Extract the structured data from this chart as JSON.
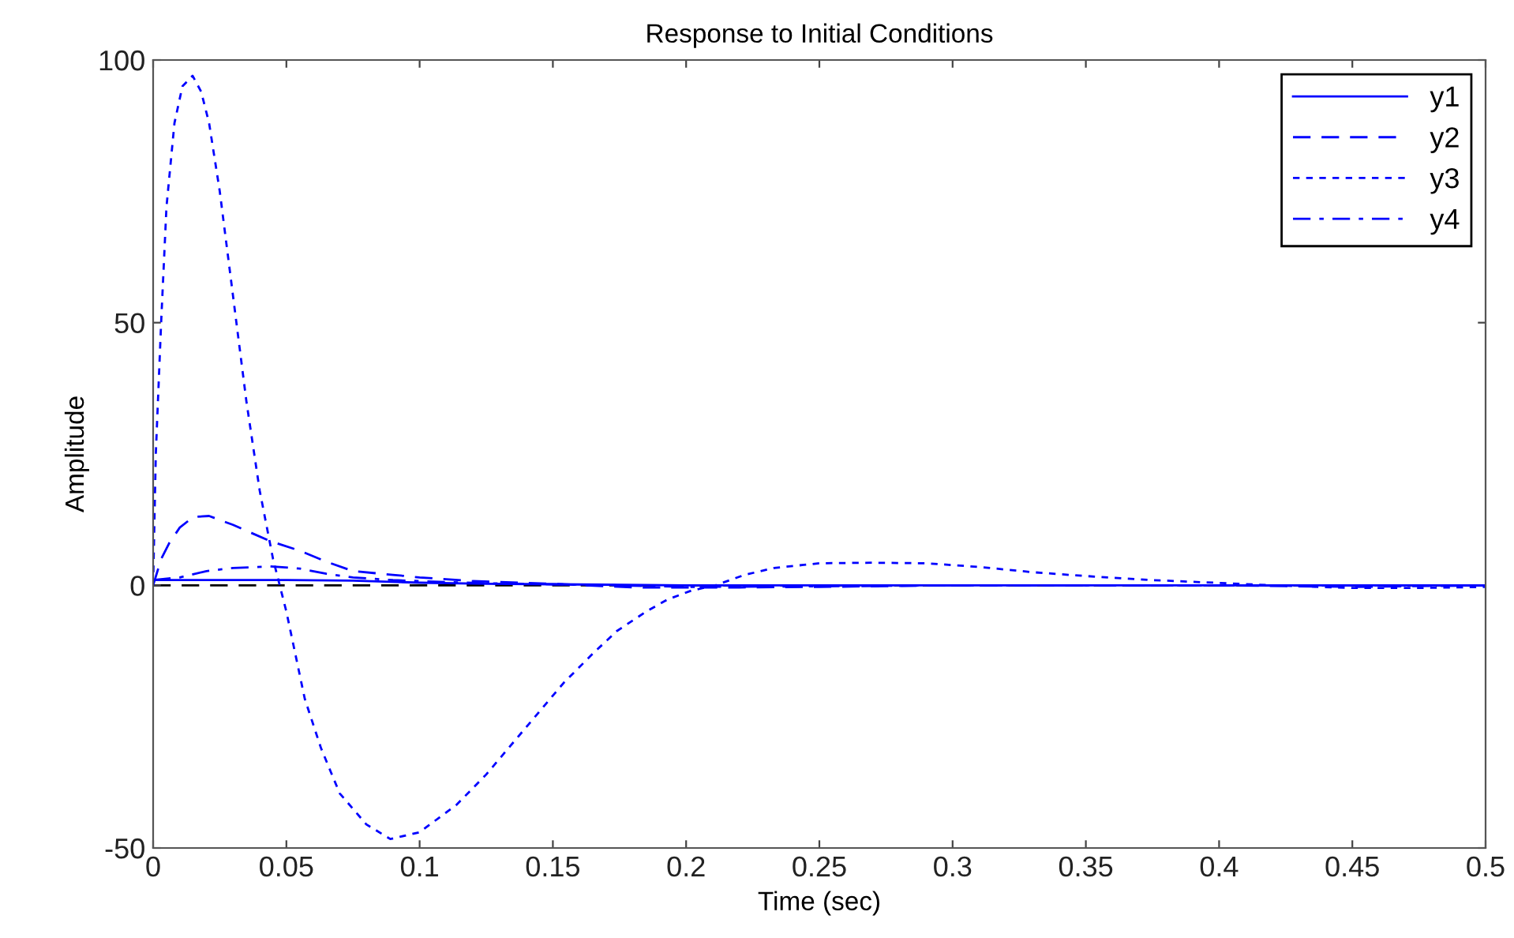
{
  "chart_data": {
    "type": "line",
    "title": "Response to Initial Conditions",
    "xlabel": "Time (sec)",
    "ylabel": "Amplitude",
    "xlim": [
      0,
      0.5
    ],
    "ylim": [
      -50,
      100
    ],
    "xticks": [
      0,
      0.05,
      0.1,
      0.15,
      0.2,
      0.25,
      0.3,
      0.35,
      0.4,
      0.45,
      0.5
    ],
    "yticks": [
      -50,
      0,
      50,
      100
    ],
    "grid": false,
    "legend": "top right",
    "marker": "none",
    "ref_lines": [
      {
        "axis": "y",
        "value": 0,
        "color": "#000000",
        "line_style": "dashed"
      }
    ],
    "series": [
      {
        "name": "y1",
        "color": "#0000ff",
        "line_style": "solid",
        "x": [
          0,
          0.02,
          0.05,
          0.075,
          0.1,
          0.125,
          0.15,
          0.2,
          0.3,
          0.4,
          0.5
        ],
        "values": [
          1,
          1,
          1,
          0.9,
          0.5,
          0.3,
          0.2,
          0,
          0,
          0,
          0
        ]
      },
      {
        "name": "y2",
        "color": "#0000ff",
        "line_style": "dashed",
        "x": [
          0,
          0.003,
          0.006,
          0.01,
          0.015,
          0.021,
          0.03,
          0.044,
          0.055,
          0.065,
          0.075,
          0.09,
          0.1,
          0.12,
          0.15,
          0.18,
          0.22,
          0.25,
          0.3,
          0.35,
          0.4,
          0.45,
          0.5
        ],
        "values": [
          0,
          5,
          8,
          11,
          13,
          13.2,
          11.5,
          8.4,
          6.6,
          4.5,
          2.7,
          2,
          1.5,
          0.8,
          0.3,
          -0.4,
          -0.4,
          -0.3,
          0,
          0,
          0,
          -0.3,
          0
        ]
      },
      {
        "name": "y3",
        "color": "#0000ff",
        "line_style": "dotted",
        "x": [
          0,
          0.001,
          0.003,
          0.005,
          0.008,
          0.011,
          0.0148,
          0.018,
          0.021,
          0.025,
          0.03,
          0.035,
          0.04,
          0.045,
          0.05,
          0.0569,
          0.063,
          0.07,
          0.08,
          0.089,
          0.1,
          0.114,
          0.125,
          0.134,
          0.145,
          0.154,
          0.165,
          0.174,
          0.185,
          0.193,
          0.202,
          0.211,
          0.222,
          0.233,
          0.25,
          0.27,
          0.29,
          0.31,
          0.33,
          0.349,
          0.375,
          0.398,
          0.42,
          0.45,
          0.475,
          0.5
        ],
        "values": [
          0,
          25,
          50,
          72,
          88,
          95,
          97,
          94,
          88,
          75,
          55,
          35,
          18,
          5,
          -5,
          -21.6,
          -31,
          -39.6,
          -45.5,
          -48.3,
          -47,
          -41.7,
          -36,
          -30.6,
          -24,
          -18.6,
          -13,
          -8.7,
          -5,
          -2.7,
          -1,
          0,
          2,
          3.3,
          4.2,
          4.3,
          4.2,
          3.5,
          2.5,
          1.8,
          1,
          0.5,
          0,
          -0.5,
          -0.5,
          -0.3
        ]
      },
      {
        "name": "y4",
        "color": "#0000ff",
        "line_style": "dashdot",
        "x": [
          0,
          0.01,
          0.02,
          0.03,
          0.044,
          0.055,
          0.065,
          0.075,
          0.09,
          0.1,
          0.125,
          0.15,
          0.175,
          0.2,
          0.25,
          0.3,
          0.4,
          0.5
        ],
        "values": [
          1,
          1.5,
          2.7,
          3.3,
          3.6,
          3.2,
          2.2,
          1.5,
          1,
          0.8,
          0.4,
          0.2,
          0,
          -0.3,
          -0.2,
          0,
          0,
          0
        ]
      }
    ]
  }
}
